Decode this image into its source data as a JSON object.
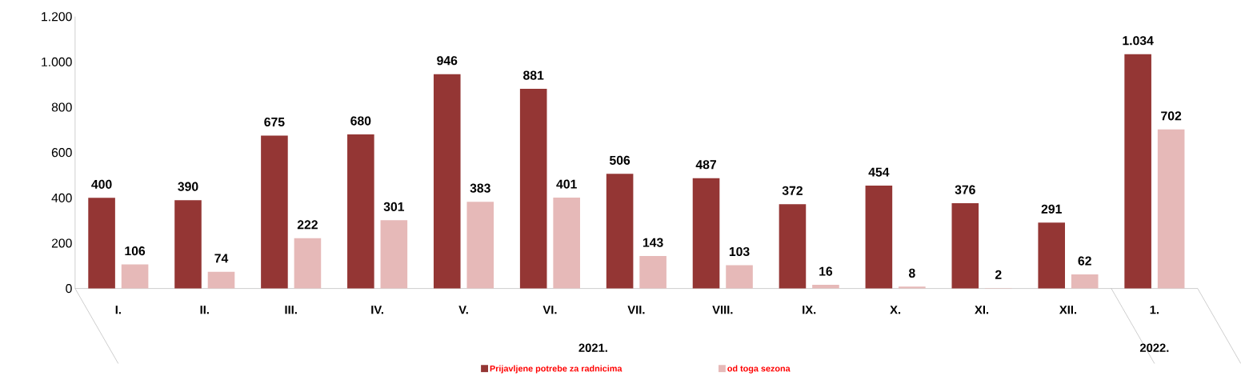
{
  "chart_data": {
    "type": "bar",
    "categories": [
      "I.",
      "II.",
      "III.",
      "IV.",
      "V.",
      "VI.",
      "VII.",
      "VIII.",
      "IX.",
      "X.",
      "XI.",
      "XII.",
      "1."
    ],
    "series": [
      {
        "name": "Prijavljene potrebe za radnicima",
        "color": "#943634",
        "values": [
          400,
          390,
          675,
          680,
          946,
          881,
          506,
          487,
          372,
          454,
          376,
          291,
          1034
        ],
        "value_labels": [
          "400",
          "390",
          "675",
          "680",
          "946",
          "881",
          "506",
          "487",
          "372",
          "454",
          "376",
          "291",
          "1.034"
        ]
      },
      {
        "name": "od toga sezona",
        "color": "#e6b9b8",
        "values": [
          106,
          74,
          222,
          301,
          383,
          401,
          143,
          103,
          16,
          8,
          2,
          62,
          702
        ],
        "value_labels": [
          "106",
          "74",
          "222",
          "301",
          "383",
          "401",
          "143",
          "103",
          "16",
          "8",
          "2",
          "62",
          "702"
        ]
      }
    ],
    "ylim": [
      0,
      1200
    ],
    "yticks": [
      0,
      200,
      400,
      600,
      800,
      {
        "value": 1000,
        "label": "1.000"
      },
      {
        "value": 1200,
        "label": "1.200"
      }
    ],
    "annotations": [
      "2021.",
      "2022."
    ],
    "legend": "bottom",
    "grid": false
  }
}
